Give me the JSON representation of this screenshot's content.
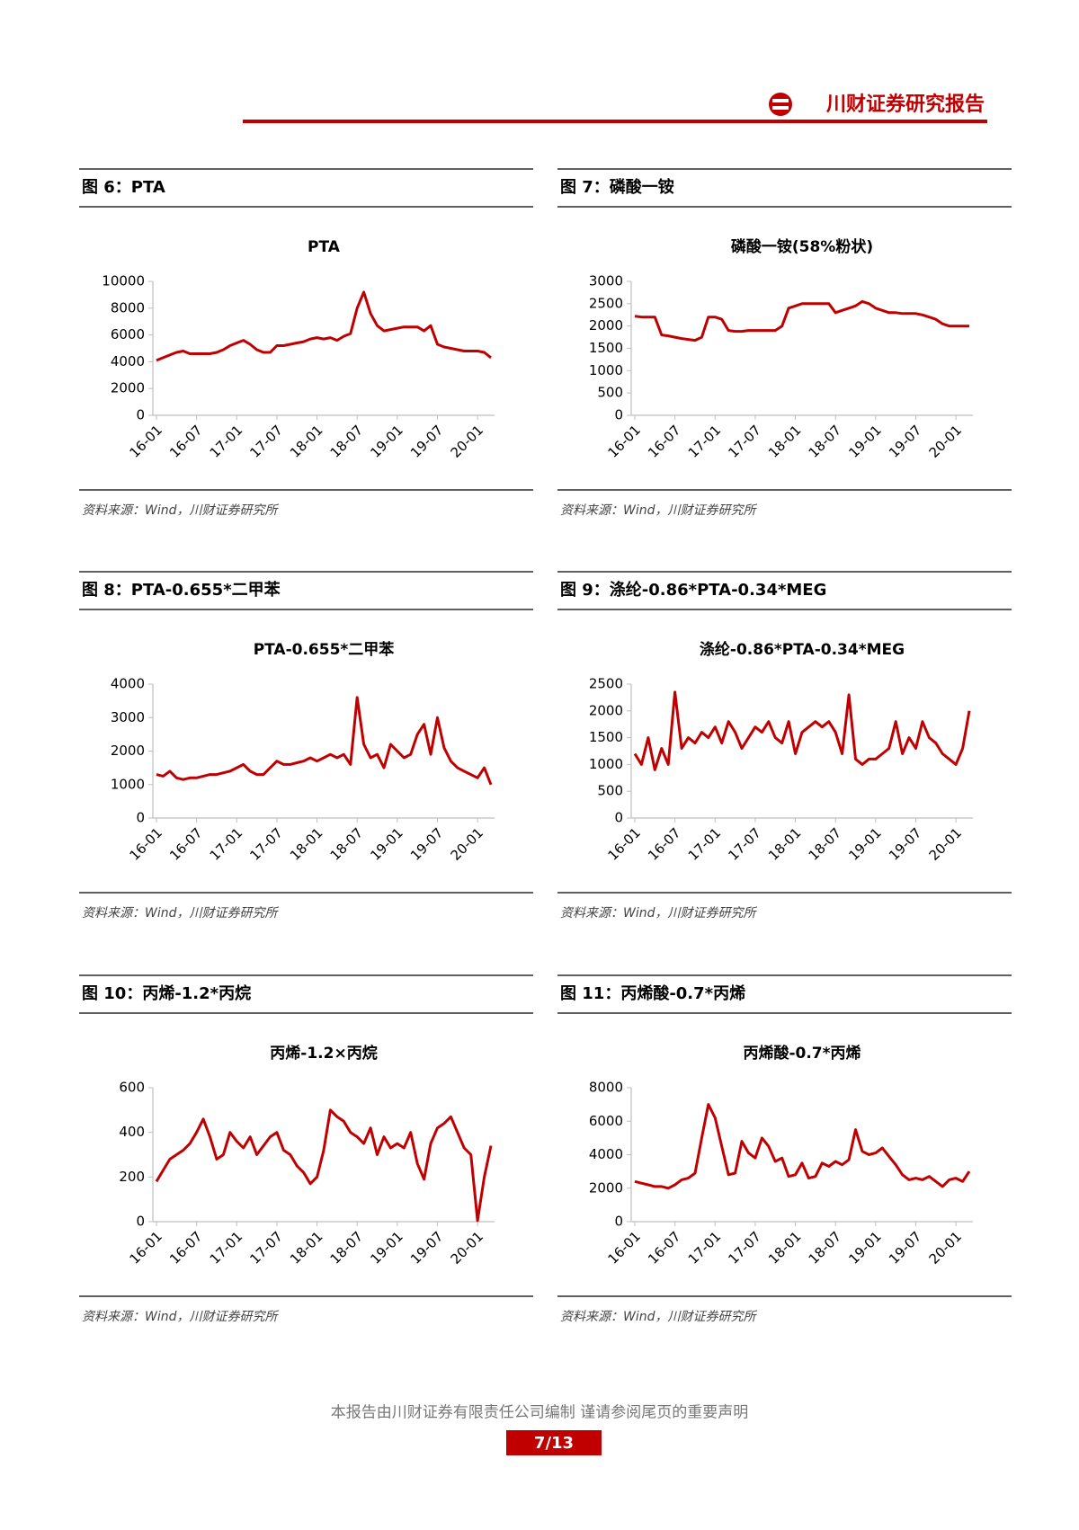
{
  "header": {
    "brand": "川财证券研究报告"
  },
  "figures": [
    {
      "caption": "图 6：PTA",
      "source": "资料来源：Wind，川财证券研究所"
    },
    {
      "caption": "图 7：磷酸一铵",
      "source": "资料来源：Wind，川财证券研究所"
    },
    {
      "caption": "图 8：PTA-0.655*二甲苯",
      "source": "资料来源：Wind，川财证券研究所"
    },
    {
      "caption": "图 9：涤纶-0.86*PTA-0.34*MEG",
      "source": "资料来源：Wind，川财证券研究所"
    },
    {
      "caption": "图 10：丙烯-1.2*丙烷",
      "source": "资料来源：Wind，川财证券研究所"
    },
    {
      "caption": "图 11：丙烯酸-0.7*丙烯",
      "source": "资料来源：Wind，川财证券研究所"
    }
  ],
  "chart_data": [
    {
      "type": "line",
      "title": "PTA",
      "categories": [
        "16-01",
        null,
        null,
        null,
        null,
        null,
        "16-07",
        null,
        null,
        null,
        null,
        null,
        "17-01",
        null,
        null,
        null,
        null,
        null,
        "17-07",
        null,
        null,
        null,
        null,
        null,
        "18-01",
        null,
        null,
        null,
        null,
        null,
        "18-07",
        null,
        null,
        null,
        null,
        null,
        "19-01",
        null,
        null,
        null,
        null,
        null,
        "19-07",
        null,
        null,
        null,
        null,
        null,
        "20-01",
        null,
        null
      ],
      "series": [
        {
          "color": "#c00000",
          "values": [
            4100,
            4300,
            4500,
            4700,
            4800,
            4600,
            4600,
            4600,
            4600,
            4700,
            4900,
            5200,
            5400,
            5600,
            5300,
            4900,
            4700,
            4700,
            5200,
            5200,
            5300,
            5400,
            5500,
            5700,
            5800,
            5700,
            5800,
            5600,
            5900,
            6100,
            8000,
            9200,
            7600,
            6700,
            6300,
            6400,
            6500,
            6600,
            6600,
            6600,
            6300,
            6700,
            5300,
            5100,
            5000,
            4900,
            4800,
            4800,
            4800,
            4700,
            4300
          ]
        }
      ],
      "ylim": [
        0,
        10000
      ],
      "yticks": [
        0,
        2000,
        4000,
        6000,
        8000,
        10000
      ]
    },
    {
      "type": "line",
      "title": "磷酸一铵(58%粉状)",
      "categories": [
        "16-01",
        null,
        null,
        null,
        null,
        null,
        "16-07",
        null,
        null,
        null,
        null,
        null,
        "17-01",
        null,
        null,
        null,
        null,
        null,
        "17-07",
        null,
        null,
        null,
        null,
        null,
        "18-01",
        null,
        null,
        null,
        null,
        null,
        "18-07",
        null,
        null,
        null,
        null,
        null,
        "19-01",
        null,
        null,
        null,
        null,
        null,
        "19-07",
        null,
        null,
        null,
        null,
        null,
        "20-01",
        null,
        null
      ],
      "series": [
        {
          "color": "#c00000",
          "values": [
            2220,
            2200,
            2200,
            2200,
            1800,
            1780,
            1750,
            1720,
            1700,
            1680,
            1750,
            2200,
            2200,
            2150,
            1900,
            1880,
            1880,
            1900,
            1900,
            1900,
            1900,
            1900,
            2000,
            2400,
            2450,
            2500,
            2500,
            2500,
            2500,
            2500,
            2300,
            2350,
            2400,
            2450,
            2550,
            2500,
            2400,
            2350,
            2300,
            2300,
            2280,
            2280,
            2280,
            2250,
            2200,
            2150,
            2050,
            2000,
            2000,
            2000,
            2000
          ]
        }
      ],
      "ylim": [
        0,
        3000
      ],
      "yticks": [
        0,
        500,
        1000,
        1500,
        2000,
        2500,
        3000
      ]
    },
    {
      "type": "line",
      "title": "PTA-0.655*二甲苯",
      "categories": [
        "16-01",
        null,
        null,
        null,
        null,
        null,
        "16-07",
        null,
        null,
        null,
        null,
        null,
        "17-01",
        null,
        null,
        null,
        null,
        null,
        "17-07",
        null,
        null,
        null,
        null,
        null,
        "18-01",
        null,
        null,
        null,
        null,
        null,
        "18-07",
        null,
        null,
        null,
        null,
        null,
        "19-01",
        null,
        null,
        null,
        null,
        null,
        "19-07",
        null,
        null,
        null,
        null,
        null,
        "20-01",
        null,
        null
      ],
      "series": [
        {
          "color": "#c00000",
          "values": [
            1300,
            1250,
            1400,
            1200,
            1150,
            1200,
            1200,
            1250,
            1300,
            1300,
            1350,
            1400,
            1500,
            1600,
            1400,
            1300,
            1300,
            1500,
            1700,
            1600,
            1600,
            1650,
            1700,
            1800,
            1700,
            1800,
            1900,
            1800,
            1900,
            1600,
            3600,
            2200,
            1800,
            1900,
            1500,
            2200,
            2000,
            1800,
            1900,
            2500,
            2800,
            1900,
            3000,
            2100,
            1700,
            1500,
            1400,
            1300,
            1200,
            1500,
            1000
          ]
        }
      ],
      "ylim": [
        0,
        4000
      ],
      "yticks": [
        0,
        1000,
        2000,
        3000,
        4000
      ]
    },
    {
      "type": "line",
      "title": "涤纶-0.86*PTA-0.34*MEG",
      "categories": [
        "16-01",
        null,
        null,
        null,
        null,
        null,
        "16-07",
        null,
        null,
        null,
        null,
        null,
        "17-01",
        null,
        null,
        null,
        null,
        null,
        "17-07",
        null,
        null,
        null,
        null,
        null,
        "18-01",
        null,
        null,
        null,
        null,
        null,
        "18-07",
        null,
        null,
        null,
        null,
        null,
        "19-01",
        null,
        null,
        null,
        null,
        null,
        "19-07",
        null,
        null,
        null,
        null,
        null,
        "20-01",
        null,
        null
      ],
      "series": [
        {
          "color": "#c00000",
          "values": [
            1200,
            1000,
            1500,
            900,
            1300,
            1000,
            2350,
            1300,
            1500,
            1400,
            1600,
            1500,
            1700,
            1400,
            1800,
            1600,
            1300,
            1500,
            1700,
            1600,
            1800,
            1500,
            1400,
            1800,
            1200,
            1600,
            1700,
            1800,
            1700,
            1800,
            1600,
            1200,
            2300,
            1100,
            1000,
            1100,
            1100,
            1200,
            1300,
            1800,
            1200,
            1500,
            1300,
            1800,
            1500,
            1400,
            1200,
            1100,
            1000,
            1300,
            2000
          ]
        }
      ],
      "ylim": [
        0,
        2500
      ],
      "yticks": [
        0,
        500,
        1000,
        1500,
        2000,
        2500
      ]
    },
    {
      "type": "line",
      "title": "丙烯-1.2×丙烷",
      "categories": [
        "16-01",
        null,
        null,
        null,
        null,
        null,
        "16-07",
        null,
        null,
        null,
        null,
        null,
        "17-01",
        null,
        null,
        null,
        null,
        null,
        "17-07",
        null,
        null,
        null,
        null,
        null,
        "18-01",
        null,
        null,
        null,
        null,
        null,
        "18-07",
        null,
        null,
        null,
        null,
        null,
        "19-01",
        null,
        null,
        null,
        null,
        null,
        "19-07",
        null,
        null,
        null,
        null,
        null,
        "20-01",
        null,
        null
      ],
      "series": [
        {
          "color": "#c00000",
          "values": [
            180,
            230,
            280,
            300,
            320,
            350,
            400,
            460,
            380,
            280,
            300,
            400,
            360,
            330,
            380,
            300,
            340,
            380,
            400,
            320,
            300,
            250,
            220,
            170,
            200,
            320,
            500,
            470,
            450,
            400,
            380,
            350,
            420,
            300,
            380,
            330,
            350,
            330,
            400,
            260,
            190,
            350,
            420,
            440,
            470,
            400,
            330,
            300,
            5,
            200,
            340
          ]
        }
      ],
      "ylim": [
        0,
        600
      ],
      "yticks": [
        0,
        200,
        400,
        600
      ]
    },
    {
      "type": "line",
      "title": "丙烯酸-0.7*丙烯",
      "categories": [
        "16-01",
        null,
        null,
        null,
        null,
        null,
        "16-07",
        null,
        null,
        null,
        null,
        null,
        "17-01",
        null,
        null,
        null,
        null,
        null,
        "17-07",
        null,
        null,
        null,
        null,
        null,
        "18-01",
        null,
        null,
        null,
        null,
        null,
        "18-07",
        null,
        null,
        null,
        null,
        null,
        "19-01",
        null,
        null,
        null,
        null,
        null,
        "19-07",
        null,
        null,
        null,
        null,
        null,
        "20-01",
        null,
        null
      ],
      "series": [
        {
          "color": "#c00000",
          "values": [
            2400,
            2300,
            2200,
            2100,
            2100,
            2000,
            2200,
            2500,
            2600,
            2900,
            5000,
            7000,
            6200,
            4500,
            2800,
            2900,
            4800,
            4100,
            3800,
            5000,
            4500,
            3600,
            3800,
            2700,
            2800,
            3500,
            2600,
            2700,
            3500,
            3300,
            3600,
            3400,
            3700,
            5500,
            4200,
            4000,
            4100,
            4400,
            3900,
            3400,
            2800,
            2500,
            2600,
            2500,
            2700,
            2400,
            2100,
            2500,
            2600,
            2400,
            3000
          ]
        }
      ],
      "ylim": [
        0,
        8000
      ],
      "yticks": [
        0,
        2000,
        4000,
        6000,
        8000
      ]
    }
  ],
  "footer": {
    "disclaimer": "本报告由川财证券有限责任公司编制 谨请参阅尾页的重要声明",
    "page": "7/13"
  }
}
